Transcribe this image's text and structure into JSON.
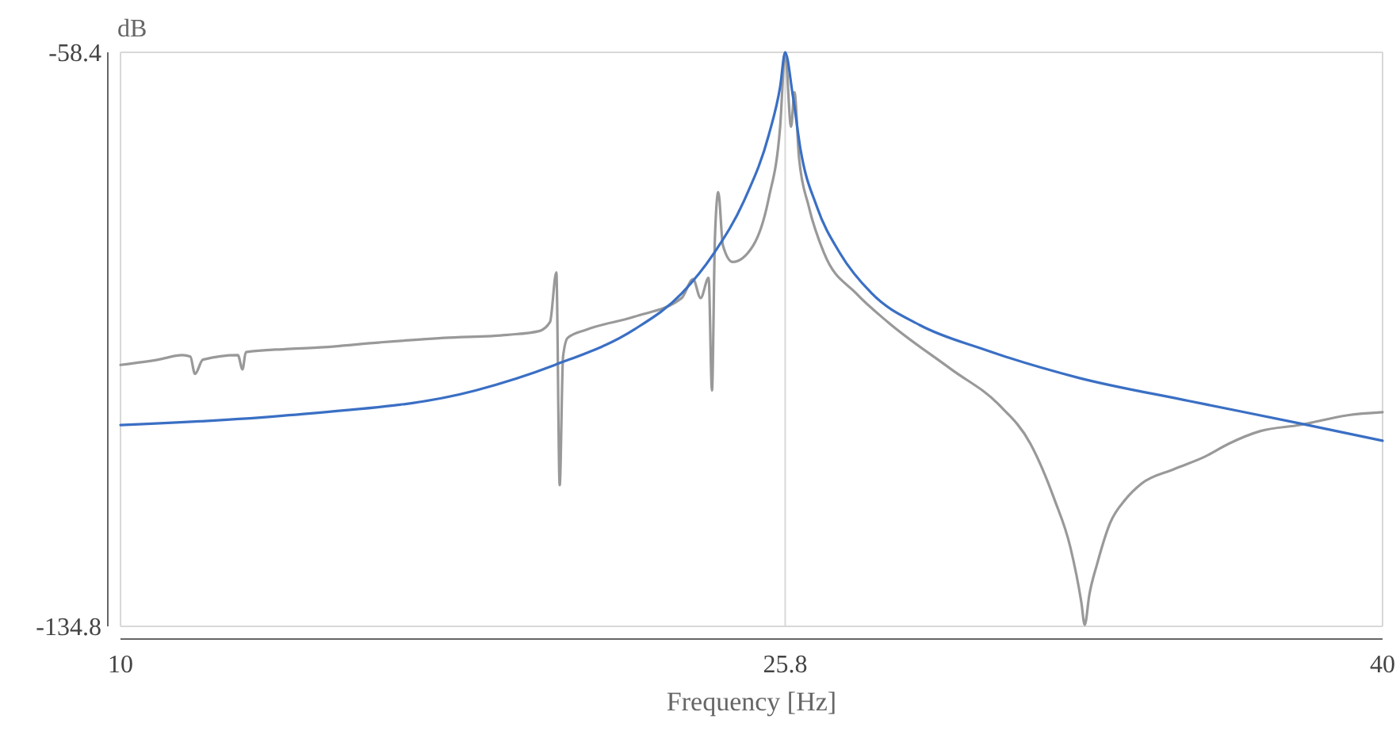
{
  "chart_data": {
    "type": "line",
    "xlabel": "Frequency [Hz]",
    "ylabel": "dB",
    "xlim": [
      10,
      40
    ],
    "ylim": [
      -134.8,
      -58.4
    ],
    "xticks": [
      10,
      25.8,
      40
    ],
    "yticks": [
      -134.8,
      -58.4
    ],
    "grid": true,
    "line_style": "solid",
    "marker": "none",
    "series": [
      {
        "color": "#999999",
        "x": [
          10,
          10.9,
          11.47,
          11.66,
          11.77,
          11.96,
          12.79,
          12.9,
          12.98,
          13.92,
          14.67,
          16.18,
          17.69,
          19.2,
          19.95,
          20.21,
          20.36,
          20.44,
          20.52,
          20.63,
          21.08,
          22.21,
          23.34,
          23.61,
          23.79,
          23.98,
          24.06,
          24.13,
          24.21,
          24.32,
          24.55,
          25.04,
          25.41,
          25.68,
          25.8,
          25.94,
          26.02,
          26.13,
          26.36,
          26.73,
          27.49,
          28.24,
          29.75,
          30.88,
          31.63,
          32.2,
          32.58,
          32.84,
          32.92,
          33.03,
          33.22,
          33.52,
          33.89,
          34.27,
          35.03,
          35.78,
          36.34,
          37.1,
          38.04,
          39.17,
          40
        ],
        "values": [
          -100.0,
          -99.3,
          -98.7,
          -98.9,
          -101.2,
          -99.3,
          -98.7,
          -100.6,
          -98.3,
          -97.9,
          -97.7,
          -97.0,
          -96.4,
          -96.0,
          -95.5,
          -94.3,
          -87.7,
          -116.0,
          -98.9,
          -96.4,
          -95.3,
          -93.6,
          -91.1,
          -88.6,
          -91.1,
          -88.4,
          -103.4,
          -83.1,
          -77.0,
          -84.1,
          -86.3,
          -84.1,
          -77.8,
          -68.3,
          -58.4,
          -68.3,
          -63.7,
          -72.5,
          -78.9,
          -85.2,
          -90.5,
          -94.3,
          -100.6,
          -105.3,
          -110.5,
          -117.9,
          -124.3,
          -131.6,
          -134.6,
          -130.6,
          -126.4,
          -121.1,
          -117.9,
          -115.8,
          -113.9,
          -112.2,
          -110.5,
          -108.8,
          -108.0,
          -106.7,
          -106.3
        ]
      },
      {
        "color": "#3a6fc4",
        "x": [
          10,
          14,
          18.44,
          20.33,
          22.21,
          23.34,
          24.1,
          24.85,
          25.41,
          25.68,
          25.8,
          25.98,
          26.17,
          26.55,
          27.11,
          27.86,
          29.0,
          30.5,
          32.76,
          35.4,
          38.04,
          40
        ],
        "values": [
          -108.0,
          -106.7,
          -103.4,
          -100.0,
          -95.3,
          -90.5,
          -85.2,
          -77.8,
          -69.4,
          -63.0,
          -58.4,
          -64.1,
          -71.5,
          -78.9,
          -85.2,
          -90.5,
          -94.7,
          -97.9,
          -101.7,
          -104.8,
          -107.8,
          -110.1
        ]
      }
    ]
  }
}
